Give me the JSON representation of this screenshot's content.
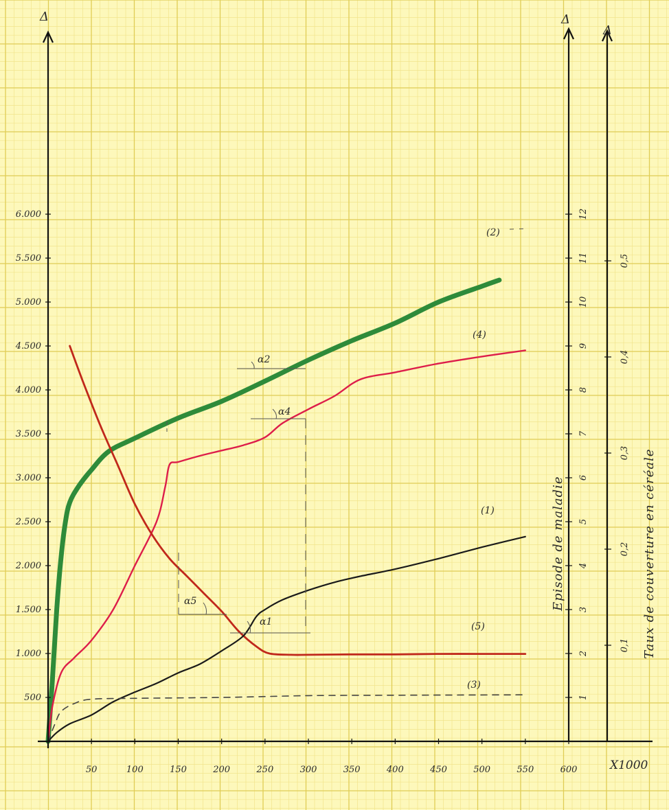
{
  "colors": {
    "paper": "#fdf8bb",
    "grid_minor": "#f1e48c",
    "grid_major": "#e0cc55",
    "axis": "#111111",
    "series_1": "#1a1a1a",
    "series_2": "#2e8b3a",
    "series_3": "#444444",
    "series_4": "#dd1d4a",
    "series_5": "#c0281b"
  },
  "chart_data": {
    "type": "line",
    "title": "",
    "x_axis": {
      "label": "X1000",
      "range": [
        0,
        600
      ],
      "ticks": [
        50,
        100,
        150,
        200,
        250,
        300,
        350,
        400,
        450,
        500,
        550,
        600
      ],
      "tick_labels": [
        "50",
        "100",
        "150",
        "200",
        "250",
        "300",
        "350",
        "400",
        "450",
        "500",
        "550",
        "600"
      ]
    },
    "y_axis_left": {
      "label": "Δ",
      "range": [
        0,
        6000
      ],
      "ticks": [
        500,
        1000,
        1500,
        2000,
        2500,
        3000,
        3500,
        4000,
        4500,
        5000,
        5500,
        6000
      ],
      "tick_labels": [
        "500",
        "1.000",
        "1.500",
        "2.000",
        "2.500",
        "3.000",
        "3.500",
        "4.000",
        "4.500",
        "5.000",
        "5.500",
        "6.000"
      ]
    },
    "y_axis_right_1": {
      "label": "Episode de maladie",
      "top_marker": "Δ",
      "range": [
        0,
        12
      ],
      "ticks": [
        1,
        2,
        3,
        4,
        5,
        6,
        7,
        8,
        9,
        10,
        11,
        12
      ],
      "tick_labels": [
        "1",
        "2",
        "3",
        "4",
        "5",
        "6",
        "7",
        "8",
        "9",
        "10",
        "11",
        "12"
      ]
    },
    "y_axis_right_2": {
      "label": "Taux de couverture en céréale",
      "top_marker": "Δ",
      "range": [
        0,
        0.6
      ],
      "ticks": [
        0.1,
        0.2,
        0.3,
        0.4,
        0.5
      ],
      "tick_labels": [
        "0,1",
        "0,2",
        "0,3",
        "0,4",
        "0,5"
      ]
    },
    "series": [
      {
        "name": "(1)",
        "style": "solid-thin",
        "points": [
          [
            0,
            0
          ],
          [
            10,
            100
          ],
          [
            25,
            200
          ],
          [
            50,
            300
          ],
          [
            75,
            450
          ],
          [
            100,
            560
          ],
          [
            125,
            660
          ],
          [
            150,
            780
          ],
          [
            175,
            880
          ],
          [
            200,
            1030
          ],
          [
            225,
            1200
          ],
          [
            240,
            1420
          ],
          [
            250,
            1500
          ],
          [
            270,
            1610
          ],
          [
            300,
            1720
          ],
          [
            330,
            1810
          ],
          [
            360,
            1880
          ],
          [
            400,
            1960
          ],
          [
            450,
            2080
          ],
          [
            500,
            2210
          ],
          [
            550,
            2330
          ]
        ]
      },
      {
        "name": "(2)",
        "style": "solid-thick",
        "points": [
          [
            0,
            0
          ],
          [
            5,
            700
          ],
          [
            10,
            1500
          ],
          [
            15,
            2100
          ],
          [
            20,
            2500
          ],
          [
            25,
            2720
          ],
          [
            35,
            2900
          ],
          [
            50,
            3090
          ],
          [
            70,
            3300
          ],
          [
            100,
            3450
          ],
          [
            150,
            3680
          ],
          [
            200,
            3870
          ],
          [
            250,
            4100
          ],
          [
            300,
            4340
          ],
          [
            350,
            4560
          ],
          [
            400,
            4760
          ],
          [
            450,
            5000
          ],
          [
            500,
            5180
          ],
          [
            520,
            5250
          ]
        ]
      },
      {
        "name": "(3)",
        "style": "dashed",
        "points": [
          [
            0,
            0
          ],
          [
            8,
            200
          ],
          [
            15,
            340
          ],
          [
            30,
            430
          ],
          [
            50,
            480
          ],
          [
            100,
            490
          ],
          [
            200,
            500
          ],
          [
            300,
            520
          ],
          [
            400,
            525
          ],
          [
            550,
            530
          ]
        ]
      },
      {
        "name": "(4)",
        "style": "solid-medium",
        "points": [
          [
            0,
            0
          ],
          [
            5,
            400
          ],
          [
            15,
            780
          ],
          [
            30,
            950
          ],
          [
            50,
            1150
          ],
          [
            75,
            1500
          ],
          [
            100,
            2000
          ],
          [
            125,
            2500
          ],
          [
            135,
            2900
          ],
          [
            140,
            3150
          ],
          [
            150,
            3180
          ],
          [
            175,
            3250
          ],
          [
            200,
            3310
          ],
          [
            225,
            3370
          ],
          [
            250,
            3460
          ],
          [
            270,
            3620
          ],
          [
            300,
            3780
          ],
          [
            330,
            3930
          ],
          [
            360,
            4120
          ],
          [
            400,
            4200
          ],
          [
            450,
            4300
          ],
          [
            500,
            4380
          ],
          [
            550,
            4450
          ]
        ]
      },
      {
        "name": "(5)",
        "style": "solid-medium",
        "points": [
          [
            25,
            4500
          ],
          [
            40,
            4100
          ],
          [
            60,
            3600
          ],
          [
            80,
            3150
          ],
          [
            100,
            2700
          ],
          [
            120,
            2350
          ],
          [
            140,
            2080
          ],
          [
            160,
            1880
          ],
          [
            180,
            1680
          ],
          [
            200,
            1480
          ],
          [
            220,
            1250
          ],
          [
            240,
            1080
          ],
          [
            255,
            1000
          ],
          [
            280,
            985
          ],
          [
            300,
            985
          ],
          [
            350,
            990
          ],
          [
            400,
            990
          ],
          [
            450,
            995
          ],
          [
            500,
            995
          ],
          [
            550,
            995
          ]
        ]
      }
    ],
    "annotations": [
      "α2",
      "α4",
      "α5",
      "α1"
    ],
    "grid": true,
    "legend": "none"
  }
}
